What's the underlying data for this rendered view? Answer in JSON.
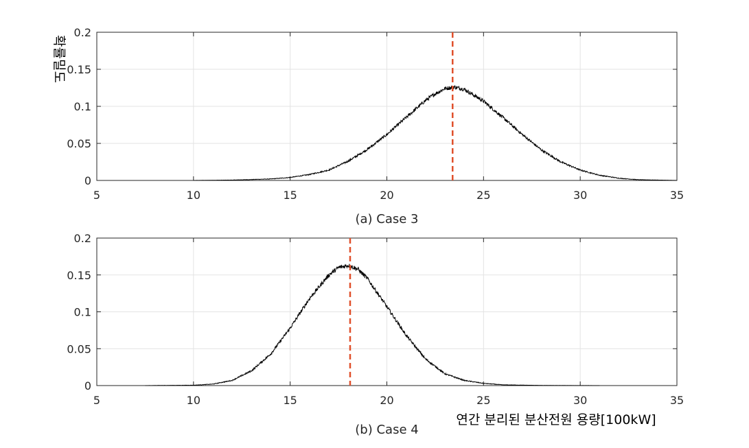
{
  "chart_data": [
    {
      "type": "line",
      "caption": "(a) Case 3",
      "ylabel": "확률밀도",
      "xlabel": "",
      "xlim": [
        5,
        35
      ],
      "ylim": [
        0,
        0.2
      ],
      "xticks": [
        "5",
        "10",
        "15",
        "20",
        "25",
        "30",
        "35"
      ],
      "yticks": [
        "0",
        "0.05",
        "0.1",
        "0.15",
        "0.2"
      ],
      "grid": true,
      "x": [
        10,
        12,
        14,
        15,
        16,
        17,
        18,
        19,
        20,
        21,
        22,
        22.5,
        23,
        23.5,
        24,
        25,
        26,
        27,
        28,
        29,
        30,
        31,
        32,
        33,
        35
      ],
      "y": [
        0,
        0.0005,
        0.002,
        0.004,
        0.008,
        0.014,
        0.026,
        0.042,
        0.062,
        0.085,
        0.108,
        0.117,
        0.124,
        0.126,
        0.123,
        0.107,
        0.085,
        0.062,
        0.041,
        0.025,
        0.014,
        0.007,
        0.003,
        0.001,
        0
      ],
      "line_color": "#000000",
      "vline": {
        "x": 23.4,
        "color": "#E0502B",
        "style": "dashed"
      }
    },
    {
      "type": "line",
      "caption": "(b) Case 4",
      "ylabel": "",
      "xlabel": "연간 분리된 분산전원 용량[100kW]",
      "xlim": [
        5,
        35
      ],
      "ylim": [
        0,
        0.2
      ],
      "xticks": [
        "5",
        "10",
        "15",
        "20",
        "25",
        "30",
        "35"
      ],
      "yticks": [
        "0",
        "0.05",
        "0.1",
        "0.15",
        "0.2"
      ],
      "grid": true,
      "x": [
        7.5,
        10,
        11,
        12,
        13,
        14,
        15,
        16,
        17,
        17.5,
        18,
        18.5,
        19,
        20,
        21,
        22,
        23,
        24,
        25,
        26,
        28,
        31
      ],
      "y": [
        0,
        0.0005,
        0.002,
        0.007,
        0.02,
        0.043,
        0.078,
        0.118,
        0.15,
        0.16,
        0.163,
        0.158,
        0.145,
        0.107,
        0.068,
        0.036,
        0.016,
        0.007,
        0.003,
        0.001,
        0.0002,
        0
      ],
      "line_color": "#000000",
      "vline": {
        "x": 18.1,
        "color": "#E0502B",
        "style": "dashed"
      }
    }
  ]
}
